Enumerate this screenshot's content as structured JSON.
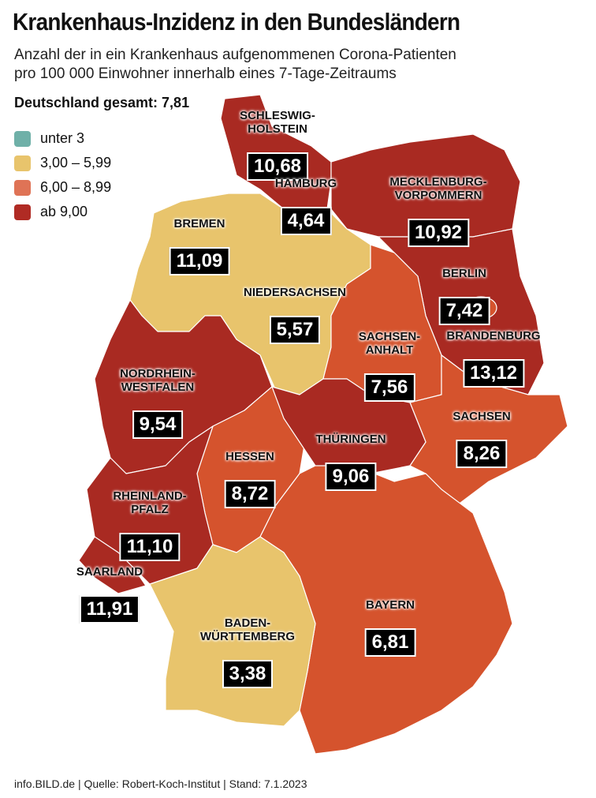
{
  "title": "Krankenhaus-Inzidenz in den Bundesländern",
  "subtitle": [
    "Anzahl der in ein Krankenhaus aufgenommenen Corona-Patienten",
    "pro 100 000 Einwohner innerhalb eines 7-Tage-Zeitraums"
  ],
  "total": "Deutschland gesamt: 7,81",
  "colors": {
    "teal": "#6fb0a8",
    "yellow": "#e8c46c",
    "orange": "#d5532d",
    "red": "#a92a22",
    "legend_orange": "#df7356"
  },
  "legend": [
    {
      "label": "unter 3",
      "color": "#6fb0a8"
    },
    {
      "label": "3,00 – 5,99",
      "color": "#e8c46c"
    },
    {
      "label": "6,00 – 8,99",
      "color": "#df7356"
    },
    {
      "label": "ab 9,00",
      "color": "#b02b24"
    }
  ],
  "states": [
    {
      "name": "SCHLESWIG-\nHOLSTEIN",
      "value": "10,68"
    },
    {
      "name": "HAMBURG",
      "value": "4,64"
    },
    {
      "name": "MECKLENBURG-\nVORPOMMERN",
      "value": "10,92"
    },
    {
      "name": "BREMEN",
      "value": "11,09"
    },
    {
      "name": "NIEDERSACHSEN",
      "value": "5,57"
    },
    {
      "name": "BERLIN",
      "value": "7,42"
    },
    {
      "name": "SACHSEN-\nANHALT",
      "value": "7,56"
    },
    {
      "name": "BRANDENBURG",
      "value": "13,12"
    },
    {
      "name": "NORDRHEIN-\nWESTFALEN",
      "value": "9,54"
    },
    {
      "name": "SACHSEN",
      "value": "8,26"
    },
    {
      "name": "THÜRINGEN",
      "value": "9,06"
    },
    {
      "name": "HESSEN",
      "value": "8,72"
    },
    {
      "name": "RHEINLAND-\nPFALZ",
      "value": "11,10"
    },
    {
      "name": "SAARLAND",
      "value": "11,91"
    },
    {
      "name": "BAYERN",
      "value": "6,81"
    },
    {
      "name": "BADEN-\nWÜRTTEMBERG",
      "value": "3,38"
    }
  ],
  "footer": "info.BILD.de | Quelle: Robert-Koch-Institut | Stand: 7.1.2023"
}
